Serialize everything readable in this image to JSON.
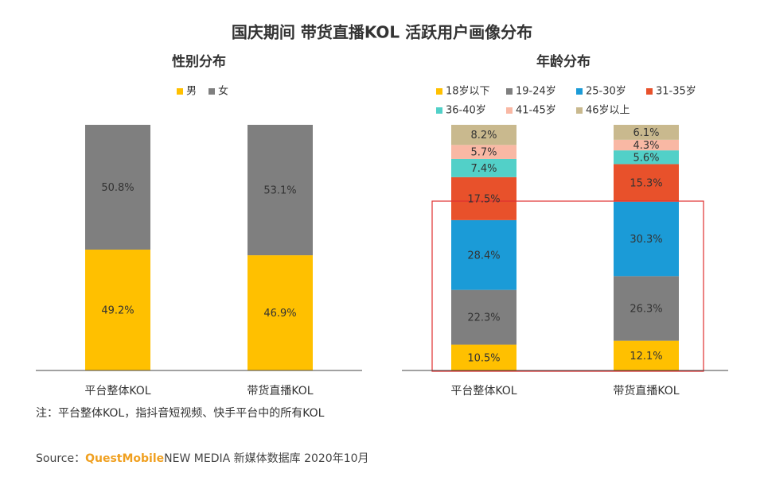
{
  "title": "国庆期间 带货直播KOL 活跃用户画像分布",
  "chart_data": [
    {
      "type": "stacked_bar",
      "title": "性别分布",
      "categories": [
        "平台整体KOL",
        "带货直播KOL"
      ],
      "ylim": [
        0,
        100
      ],
      "series": [
        {
          "name": "男",
          "color": "#ffc000",
          "values": [
            49.2,
            46.9
          ],
          "value_labels": [
            "49.2%",
            "46.9%"
          ]
        },
        {
          "name": "女",
          "color": "#7f7f7f",
          "values": [
            50.8,
            53.1
          ],
          "value_labels": [
            "50.8%",
            "53.1%"
          ]
        }
      ]
    },
    {
      "type": "stacked_bar",
      "title": "年龄分布",
      "categories": [
        "平台整体KOL",
        "带货直播KOL"
      ],
      "ylim": [
        0,
        100
      ],
      "series": [
        {
          "name": "18岁以下",
          "color": "#ffc000",
          "values": [
            10.5,
            12.1
          ],
          "value_labels": [
            "10.5%",
            "12.1%"
          ]
        },
        {
          "name": "19-24岁",
          "color": "#7f7f7f",
          "values": [
            22.3,
            26.3
          ],
          "value_labels": [
            "22.3%",
            "26.3%"
          ]
        },
        {
          "name": "25-30岁",
          "color": "#1b9bd7",
          "values": [
            28.4,
            30.3
          ],
          "value_labels": [
            "28.4%",
            "30.3%"
          ]
        },
        {
          "name": "31-35岁",
          "color": "#e8512b",
          "values": [
            17.5,
            15.3
          ],
          "value_labels": [
            "17.5%",
            "15.3%"
          ]
        },
        {
          "name": "36-40岁",
          "color": "#52d0c8",
          "values": [
            7.4,
            5.6
          ],
          "value_labels": [
            "7.4%",
            "5.6%"
          ]
        },
        {
          "name": "41-45岁",
          "color": "#f9b8a4",
          "values": [
            5.7,
            4.3
          ],
          "value_labels": [
            "5.7%",
            "4.3%"
          ]
        },
        {
          "name": "46岁以上",
          "color": "#c9b98e",
          "values": [
            8.2,
            6.1
          ],
          "value_labels": [
            "8.2%",
            "6.1%"
          ]
        }
      ]
    }
  ],
  "note": "注：平台整体KOL，指抖音短视频、快手平台中的所有KOL",
  "source": {
    "label": "Source：",
    "brand": "QuestMobile",
    "text": "NEW MEDIA 新媒体数据库 2020年10月"
  }
}
